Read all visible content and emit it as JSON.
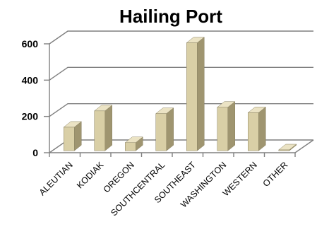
{
  "chart_data": {
    "type": "bar",
    "title": "Hailing Port",
    "xlabel": "",
    "ylabel": "",
    "categories": [
      "ALEUTIAN",
      "KODIAK",
      "OREGON",
      "SOUTHCENTRAL",
      "SOUTHEAST",
      "WASHINGTON",
      "WESTERN",
      "OTHER"
    ],
    "values": [
      130,
      220,
      45,
      205,
      595,
      240,
      210,
      5
    ],
    "yticks": [
      "0",
      "200",
      "400",
      "600"
    ],
    "ylim": [
      0,
      600
    ],
    "grid": true,
    "legend": "none",
    "style": "3d-column",
    "colors": {
      "bar_front": "#d9cfa6",
      "bar_side": "#9f9570",
      "bar_top": "#ebe3c4",
      "gridline": "#7f7f7f"
    }
  }
}
